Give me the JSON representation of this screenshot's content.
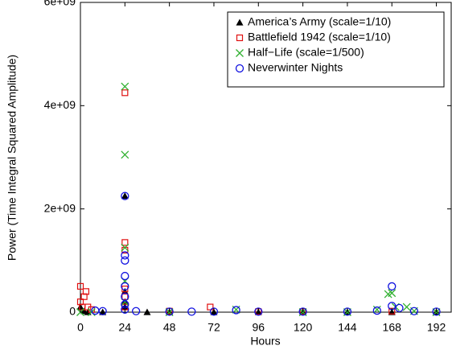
{
  "chart_data": {
    "type": "scatter",
    "x_label": "Hours",
    "y_label": "Power (Time Integral Squared Amplitude)",
    "xlim": [
      0,
      200
    ],
    "ylim": [
      0,
      6000000000.0
    ],
    "xticks": [
      0,
      24,
      48,
      72,
      96,
      120,
      144,
      168,
      192
    ],
    "yticks": [
      0,
      {
        "value": 2000000000.0,
        "label": "2e+09"
      },
      {
        "value": 4000000000.0,
        "label": "4e+09"
      },
      {
        "value": 6000000000.0,
        "label": "6e+09"
      }
    ],
    "grid": false,
    "legend": "upper right",
    "series": [
      {
        "name": "America’s Army (scale=1/10)",
        "color": "#000000",
        "marker": "triangle",
        "x": [
          0,
          2,
          4,
          12,
          24,
          24,
          24,
          24,
          36,
          48,
          72,
          96,
          120,
          144,
          168,
          192
        ],
        "y": [
          100000000.0,
          20000000.0,
          0,
          0,
          2250000000.0,
          400000000.0,
          200000000.0,
          100000000.0,
          0,
          0,
          0,
          0,
          0,
          0,
          0,
          0
        ]
      },
      {
        "name": "Battlefield 1942 (scale=1/10)",
        "color": "#e01010",
        "marker": "square",
        "x": [
          0,
          0,
          1,
          2,
          3,
          4,
          6,
          24,
          24,
          24,
          24,
          24,
          24,
          48,
          70,
          96,
          120,
          168
        ],
        "y": [
          500000000.0,
          200000000.0,
          100000000.0,
          300000000.0,
          400000000.0,
          100000000.0,
          50000000.0,
          4250000000.0,
          1350000000.0,
          1200000000.0,
          450000000.0,
          300000000.0,
          100000000.0,
          20000000.0,
          100000000.0,
          10000000.0,
          10000000.0,
          20000000.0
        ]
      },
      {
        "name": "Half−Life (scale=1/500)",
        "color": "#30b030",
        "marker": "x",
        "x": [
          0,
          6,
          24,
          24,
          24,
          24,
          24,
          48,
          84,
          120,
          144,
          160,
          166,
          168,
          170,
          176,
          180,
          192
        ],
        "y": [
          0,
          0,
          4370000000.0,
          3050000000.0,
          1250000000.0,
          600000000.0,
          200000000.0,
          0,
          50000000.0,
          0,
          0,
          50000000.0,
          350000000.0,
          370000000.0,
          100000000.0,
          100000000.0,
          20000000.0,
          0
        ]
      },
      {
        "name": "Neverwinter Nights",
        "color": "#1010e0",
        "marker": "circle",
        "x": [
          8,
          12,
          24,
          24,
          24,
          24,
          24,
          24,
          24,
          24,
          30,
          48,
          60,
          72,
          84,
          96,
          120,
          144,
          160,
          168,
          168,
          172,
          180,
          192
        ],
        "y": [
          30000000.0,
          20000000.0,
          2250000000.0,
          1100000000.0,
          1000000000.0,
          700000000.0,
          500000000.0,
          300000000.0,
          150000000.0,
          50000000.0,
          20000000.0,
          10000000.0,
          10000000.0,
          10000000.0,
          40000000.0,
          10000000.0,
          10000000.0,
          10000000.0,
          30000000.0,
          500000000.0,
          120000000.0,
          80000000.0,
          20000000.0,
          10000000.0
        ]
      }
    ]
  }
}
